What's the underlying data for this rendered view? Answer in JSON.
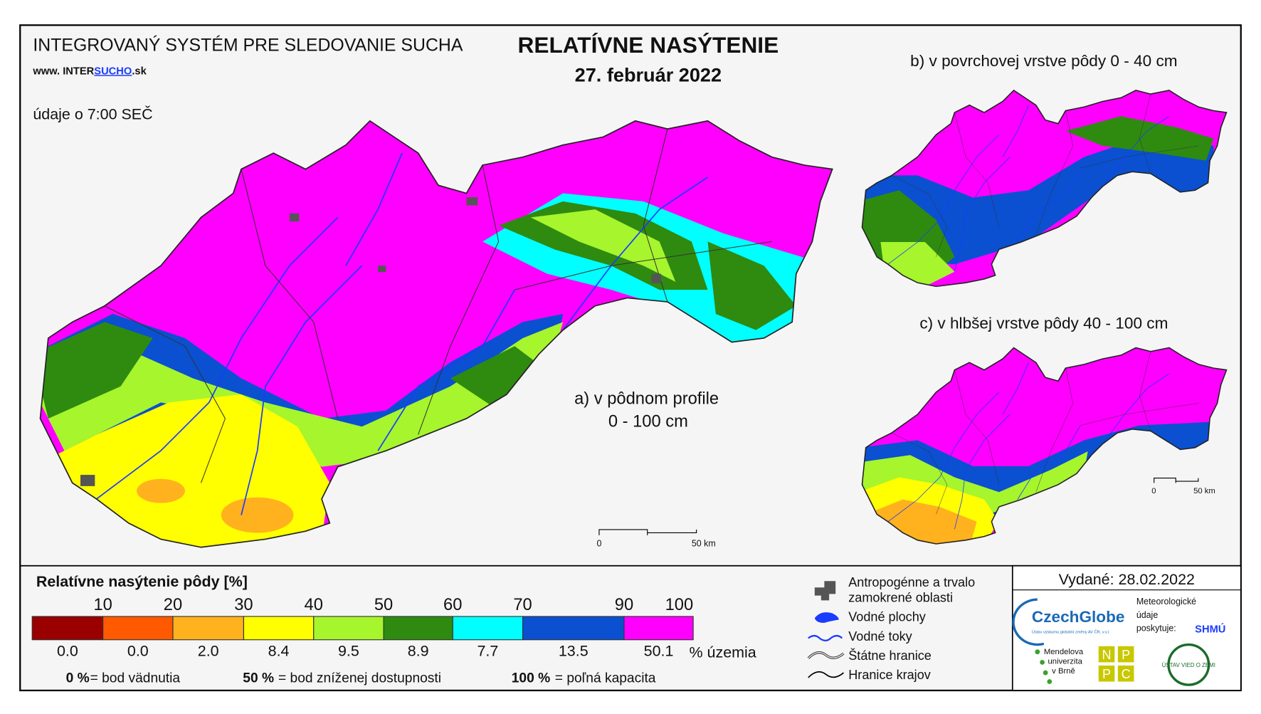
{
  "header": {
    "system": "INTEGROVANÝ SYSTÉM PRE SLEDOVANIE SUCHA",
    "url_prefix": "www. INTER",
    "url_highlight": "SUCHO",
    "url_suffix": ".sk",
    "time_note": "údaje o 7:00 SEČ"
  },
  "title": "RELATÍVNE NASÝTENIE",
  "date": "27. február 2022",
  "maps": {
    "a_line1": "a) v pôdnom profile",
    "a_line2": "0 - 100 cm",
    "b": "b) v povrchovej vrstve pôdy 0 - 40 cm",
    "c": "c) v hlbšej vrstve pôdy 40 - 100 cm"
  },
  "scalebar": {
    "start": "0",
    "end": "50 km"
  },
  "legend": {
    "title": "Relatívne nasýtenie pôdy [%]",
    "thresholds": [
      "10",
      "20",
      "30",
      "40",
      "50",
      "60",
      "70",
      "90",
      "100"
    ],
    "classes": [
      {
        "color": "#9b0000",
        "share": "0.0"
      },
      {
        "color": "#ff5a00",
        "share": "0.0"
      },
      {
        "color": "#ffb21e",
        "share": "2.0"
      },
      {
        "color": "#ffff00",
        "share": "8.4"
      },
      {
        "color": "#a6f52d",
        "share": "9.5"
      },
      {
        "color": "#2e8b10",
        "share": "8.9"
      },
      {
        "color": "#00ffff",
        "share": "7.7"
      },
      {
        "color": "#0a50d0",
        "share": "13.5"
      },
      {
        "color": "#ff00ff",
        "share": "50.1"
      }
    ],
    "share_unit": "% územia",
    "notes": [
      {
        "key": "0 %",
        "text": "= bod vädnutia"
      },
      {
        "key": "50 %",
        "text": "= bod zníženej dostupnosti"
      },
      {
        "key": "100 %",
        "text": "= poľná kapacita"
      }
    ]
  },
  "symbols": [
    "Antropogénne a trvalo",
    "zamokrené oblasti",
    "Vodné plochy",
    "Vodné toky",
    "Štátne hranice",
    "Hranice krajov"
  ],
  "issued": "Vydané: 28.02.2022",
  "credits": {
    "czechglobe": "CzechGlobe",
    "czechglobe_sub": "Ústav výskumu globální změny AV ČR, v.v.i.",
    "meteo": [
      "Meteorologické",
      "údaje",
      "poskytuje:"
    ],
    "shmu": "SHMÚ",
    "mendel": [
      "Mendelova",
      "univerzita",
      "v Brně"
    ],
    "nppc": [
      "N",
      "P",
      "P",
      "C"
    ],
    "uvz": "ÚSTAV VIED O ZEMI"
  }
}
